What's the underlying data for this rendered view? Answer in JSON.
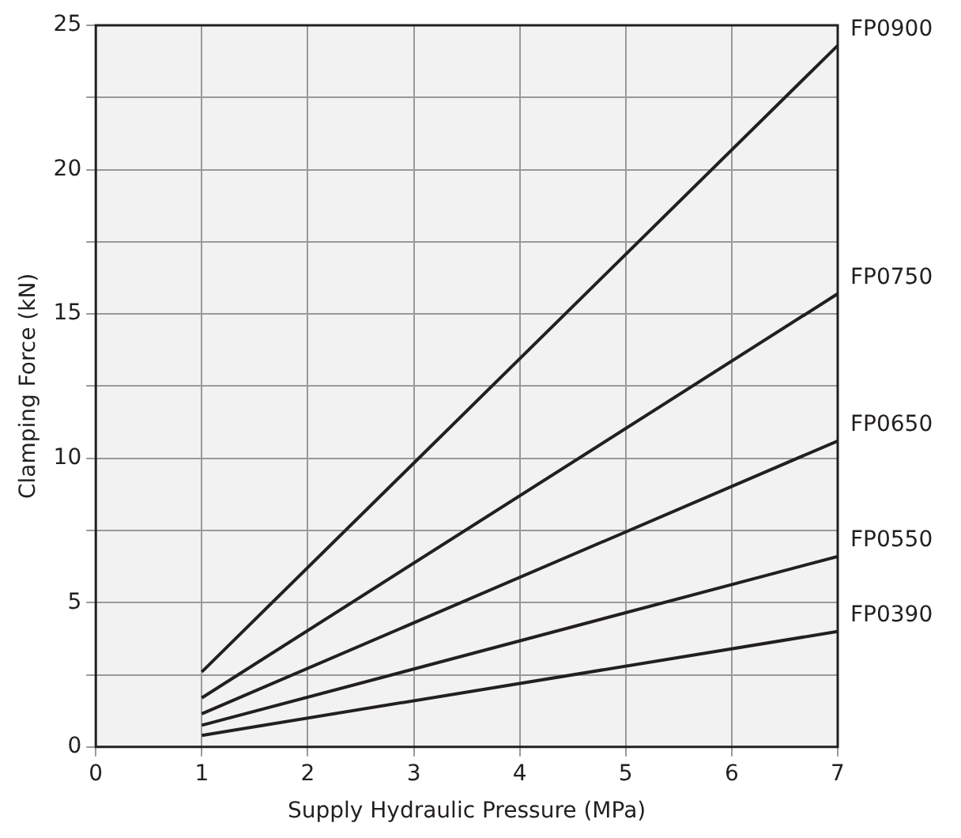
{
  "chart_data": {
    "type": "line",
    "xlabel": "Supply Hydraulic Pressure (MPa)",
    "ylabel": "Clamping Force (kN)",
    "x": [
      1,
      7
    ],
    "series": [
      {
        "name": "FP0900",
        "color": "#231f20",
        "values": [
          2.6,
          24.3
        ]
      },
      {
        "name": "FP0750",
        "color": "#231f20",
        "values": [
          1.7,
          15.7
        ]
      },
      {
        "name": "FP0650",
        "color": "#231f20",
        "values": [
          1.15,
          10.6
        ]
      },
      {
        "name": "FP0550",
        "color": "#231f20",
        "values": [
          0.75,
          6.6
        ]
      },
      {
        "name": "FP0390",
        "color": "#231f20",
        "values": [
          0.4,
          4.0
        ]
      }
    ],
    "xlim": [
      0,
      7
    ],
    "xticks": [
      0,
      1,
      2,
      3,
      4,
      5,
      6,
      7
    ],
    "ylim": [
      0,
      25
    ],
    "yticks": [
      0,
      {
        "value": 2.5,
        "label": null
      },
      5,
      {
        "value": 7.5,
        "label": null
      },
      10,
      {
        "value": 12.5,
        "label": null
      },
      15,
      {
        "value": 17.5,
        "label": null
      },
      20,
      {
        "value": 22.5,
        "label": null
      },
      25
    ],
    "grid": true,
    "legend": false,
    "marker": "none",
    "line_style": "solid"
  }
}
